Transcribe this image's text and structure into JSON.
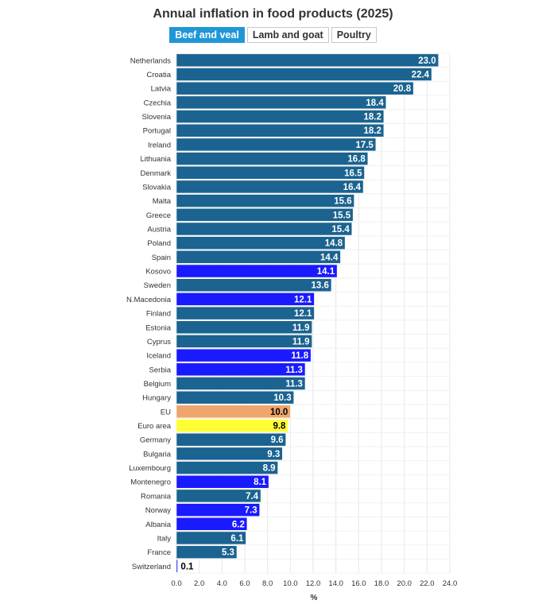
{
  "header": {
    "title": "Annual inflation in food products (2025)"
  },
  "tabs": [
    {
      "label": "Beef and veal",
      "active": true
    },
    {
      "label": "Lamb and goat",
      "active": false
    },
    {
      "label": "Poultry",
      "active": false
    }
  ],
  "colors": {
    "default": "#1b6390",
    "non_eu": "#1a1aff",
    "eu": "#eea66c",
    "euro_area": "#ffff33",
    "active_tab": "#1f97d6"
  },
  "chart_data": {
    "type": "bar",
    "orientation": "horizontal",
    "title": "Annual inflation in food products (2025)",
    "xlabel": "%",
    "ylabel": "",
    "xlim": [
      0,
      24
    ],
    "xticks": [
      "0.0",
      "2.0",
      "4.0",
      "6.0",
      "8.0",
      "10.0",
      "12.0",
      "14.0",
      "16.0",
      "18.0",
      "20.0",
      "22.0",
      "24.0"
    ],
    "grid": true,
    "categories": [
      "Netherlands",
      "Croatia",
      "Latvia",
      "Czechia",
      "Slovenia",
      "Portugal",
      "Ireland",
      "Lithuania",
      "Denmark",
      "Slovakia",
      "Malta",
      "Greece",
      "Austria",
      "Poland",
      "Spain",
      "Kosovo",
      "Sweden",
      "N.Macedonia",
      "Finland",
      "Estonia",
      "Cyprus",
      "Iceland",
      "Serbia",
      "Belgium",
      "Hungary",
      "EU",
      "Euro area",
      "Germany",
      "Bulgaria",
      "Luxembourg",
      "Montenegro",
      "Romania",
      "Norway",
      "Albania",
      "Italy",
      "France",
      "Switzerland"
    ],
    "values": [
      23.0,
      22.4,
      20.8,
      18.4,
      18.2,
      18.2,
      17.5,
      16.8,
      16.5,
      16.4,
      15.6,
      15.5,
      15.4,
      14.8,
      14.4,
      14.1,
      13.6,
      12.1,
      12.1,
      11.9,
      11.9,
      11.8,
      11.3,
      11.3,
      10.3,
      10.0,
      9.8,
      9.6,
      9.3,
      8.9,
      8.1,
      7.4,
      7.3,
      6.2,
      6.1,
      5.3,
      0.1
    ],
    "labels": [
      "23.0",
      "22.4",
      "20.8",
      "18.4",
      "18.2",
      "18.2",
      "17.5",
      "16.8",
      "16.5",
      "16.4",
      "15.6",
      "15.5",
      "15.4",
      "14.8",
      "14.4",
      "14.1",
      "13.6",
      "12.1",
      "12.1",
      "11.9",
      "11.9",
      "11.8",
      "11.3",
      "11.3",
      "10.3",
      "10.0",
      "9.8",
      "9.6",
      "9.3",
      "8.9",
      "8.1",
      "7.4",
      "7.3",
      "6.2",
      "6.1",
      "5.3",
      "0.1"
    ],
    "groups": [
      "eu",
      "eu",
      "eu",
      "eu",
      "eu",
      "eu",
      "eu",
      "eu",
      "eu",
      "eu",
      "eu",
      "eu",
      "eu",
      "eu",
      "eu",
      "non_eu",
      "eu",
      "non_eu",
      "eu",
      "eu",
      "eu",
      "non_eu",
      "non_eu",
      "eu",
      "eu",
      "eu_agg",
      "ea_agg",
      "eu",
      "eu",
      "eu",
      "non_eu",
      "eu",
      "non_eu",
      "non_eu",
      "eu",
      "eu",
      "non_eu"
    ]
  }
}
